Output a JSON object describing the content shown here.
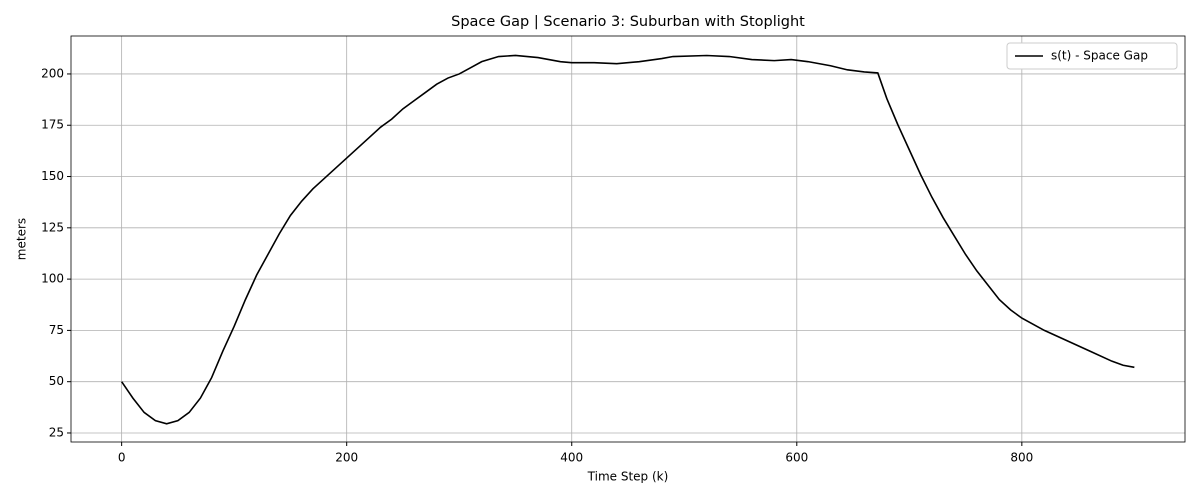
{
  "chart_data": {
    "type": "line",
    "title": "Space Gap | Scenario 3: Suburban with Stoplight",
    "x_label": "Time Step (k)",
    "y_label": "meters",
    "x": [
      0,
      10,
      20,
      30,
      40,
      50,
      60,
      70,
      80,
      90,
      100,
      110,
      120,
      130,
      140,
      150,
      160,
      170,
      180,
      190,
      200,
      210,
      220,
      230,
      240,
      250,
      260,
      270,
      280,
      290,
      300,
      310,
      320,
      335,
      350,
      370,
      390,
      400,
      420,
      440,
      460,
      480,
      490,
      520,
      540,
      560,
      580,
      595,
      610,
      630,
      645,
      660,
      672,
      680,
      690,
      700,
      710,
      720,
      730,
      740,
      750,
      760,
      770,
      780,
      790,
      800,
      820,
      840,
      860,
      880,
      890,
      900
    ],
    "series": [
      {
        "name": "s(t) - Space Gap",
        "color": "#000000",
        "values": [
          50,
          42,
          35,
          31,
          29.5,
          31,
          35,
          42,
          52,
          65,
          77,
          90,
          102,
          112,
          122,
          131,
          138,
          144,
          149,
          154,
          159,
          164,
          169,
          174,
          178,
          183,
          187,
          191,
          195,
          198,
          200,
          203,
          206,
          208.5,
          209,
          208,
          206,
          205.5,
          205.5,
          205,
          206,
          207.5,
          208.5,
          209,
          208.5,
          207,
          206.5,
          207,
          206,
          204,
          202,
          201,
          200.5,
          188,
          175,
          163,
          151,
          140,
          130,
          121,
          112,
          104,
          97,
          90,
          85,
          81,
          75,
          70,
          65,
          60,
          58,
          57
        ]
      }
    ],
    "xlim": [
      -45,
      945
    ],
    "ylim": [
      20.6,
      218.5
    ],
    "xticks": [
      0,
      200,
      400,
      600,
      800
    ],
    "yticks": [
      25,
      50,
      75,
      100,
      125,
      150,
      175,
      200
    ],
    "grid": true,
    "legend": "upper right"
  }
}
